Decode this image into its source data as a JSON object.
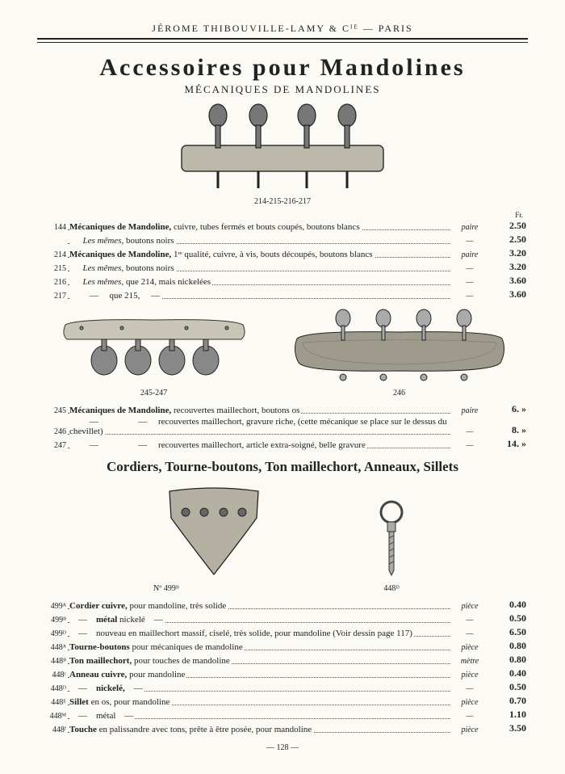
{
  "header": "JÉROME  THIBOUVILLE-LAMY  &  Cᴵᴱ   —   PARIS",
  "title": "Accessoires  pour  Mandolines",
  "subtitle": "MÉCANIQUES  DE  MANDOLINES",
  "caption1": "214-215-216-217",
  "fr": "Fr.",
  "captionLeft": "245-247",
  "captionRight": "246",
  "section2": "Cordiers, Tourne-boutons, Ton maillechort, Anneaux, Sillets",
  "captionTail": "Nº 499ᴮ",
  "caption448": "448ᴰ",
  "pageNum": "— 128 —",
  "rows1": [
    {
      "ref": "144",
      "desc": "<b>Mécaniques de Mandoline,</b> cuivre, tubes fermés et bouts coupés, boutons blancs",
      "unit": "paire",
      "price": "2.50"
    },
    {
      "ref": "",
      "desc": "&nbsp;&nbsp;&nbsp;&nbsp;&nbsp;&nbsp;<i>Les mêmes</i>, boutons noirs",
      "unit": "—",
      "price": "2.50"
    },
    {
      "ref": "214",
      "desc": "<b>Mécaniques de Mandoline,</b> 1ʳᵉ qualité, cuivre, à vis, bouts découpés, boutons blancs",
      "unit": "paire",
      "price": "3.20"
    },
    {
      "ref": "215",
      "desc": "&nbsp;&nbsp;&nbsp;&nbsp;&nbsp;&nbsp;<i>Les mêmes</i>, boutons noirs",
      "unit": "—",
      "price": "3.20"
    },
    {
      "ref": "216",
      "desc": "&nbsp;&nbsp;&nbsp;&nbsp;&nbsp;&nbsp;<i>Les mêmes</i>, que 214, mais nickelées",
      "unit": "—",
      "price": "3.60"
    },
    {
      "ref": "217",
      "desc": "&nbsp;&nbsp;&nbsp;&nbsp;&nbsp;&nbsp;&nbsp;&nbsp;&nbsp;—&nbsp;&nbsp;&nbsp;&nbsp;&nbsp;que 215,&nbsp;&nbsp;&nbsp;&nbsp;&nbsp;—",
      "unit": "—",
      "price": "3.60"
    }
  ],
  "rows2": [
    {
      "ref": "245",
      "desc": "<b>Mécaniques de Mandoline,</b> recouvertes maillechort, boutons os",
      "unit": "paire",
      "price": "6.  »"
    },
    {
      "ref": "246",
      "desc": "&nbsp;&nbsp;&nbsp;&nbsp;&nbsp;&nbsp;&nbsp;&nbsp;&nbsp;—&nbsp;&nbsp;&nbsp;&nbsp;&nbsp;&nbsp;&nbsp;&nbsp;&nbsp;&nbsp;&nbsp;&nbsp;&nbsp;&nbsp;&nbsp;&nbsp;&nbsp;&nbsp;—&nbsp;&nbsp;&nbsp;&nbsp;&nbsp;recouvertes maillechort, gravure riche, (cette mécanique se place sur le dessus du chevillet)",
      "unit": "—",
      "price": "8.  »"
    },
    {
      "ref": "247",
      "desc": "&nbsp;&nbsp;&nbsp;&nbsp;&nbsp;&nbsp;&nbsp;&nbsp;&nbsp;—&nbsp;&nbsp;&nbsp;&nbsp;&nbsp;&nbsp;&nbsp;&nbsp;&nbsp;&nbsp;&nbsp;&nbsp;&nbsp;&nbsp;&nbsp;&nbsp;&nbsp;&nbsp;—&nbsp;&nbsp;&nbsp;&nbsp;&nbsp;recouvertes maillechort, article extra-soigné, belle gravure",
      "unit": "—",
      "price": "14.  »"
    }
  ],
  "rows3": [
    {
      "ref": "499ᴬ",
      "desc": "<b>Cordier cuivre,</b> pour mandoline, très solide",
      "unit": "pièce",
      "price": "0.40"
    },
    {
      "ref": "499ᴮ",
      "desc": "&nbsp;&nbsp;&nbsp;&nbsp;—&nbsp;&nbsp;&nbsp;&nbsp;<b>métal</b> nickelé&nbsp;&nbsp;&nbsp;&nbsp;—",
      "unit": "—",
      "price": "0.50"
    },
    {
      "ref": "499ᴰ",
      "desc": "&nbsp;&nbsp;&nbsp;&nbsp;—&nbsp;&nbsp;&nbsp;&nbsp;nouveau en maillechort massif, ciselé, très solide, pour mandoline (Voir dessin page 117)",
      "unit": "—",
      "price": "6.50"
    },
    {
      "ref": "448ᴬ",
      "desc": "<b>Tourne-boutons</b> pour mécaniques de mandoline",
      "unit": "pièce",
      "price": "0.80"
    },
    {
      "ref": "448ᴮ",
      "desc": "<b>Ton maillechort,</b> pour touches de mandoline",
      "unit": "mètre",
      "price": "0.80"
    },
    {
      "ref": "448ᶜ",
      "desc": "<b>Anneau cuivre,</b> pour mandoline",
      "unit": "pièce",
      "price": "0.40"
    },
    {
      "ref": "448ᴰ",
      "desc": "&nbsp;&nbsp;&nbsp;&nbsp;—&nbsp;&nbsp;&nbsp;&nbsp;<b>nickelé,</b>&nbsp;&nbsp;&nbsp;&nbsp;—",
      "unit": "—",
      "price": "0.50"
    },
    {
      "ref": "448ᴱ",
      "desc": "<b>Sillet</b> en os, pour mandoline",
      "unit": "pièce",
      "price": "0.70"
    },
    {
      "ref": "448ᴹ",
      "desc": "&nbsp;&nbsp;&nbsp;&nbsp;—&nbsp;&nbsp;&nbsp;&nbsp;métal&nbsp;&nbsp;&nbsp;&nbsp;—",
      "unit": "—",
      "price": "1.10"
    },
    {
      "ref": "448ᶠ",
      "desc": "<b>Touche</b> en palissandre avec tons, prête à être posée, pour mandoline",
      "unit": "pièce",
      "price": "3.50"
    }
  ]
}
